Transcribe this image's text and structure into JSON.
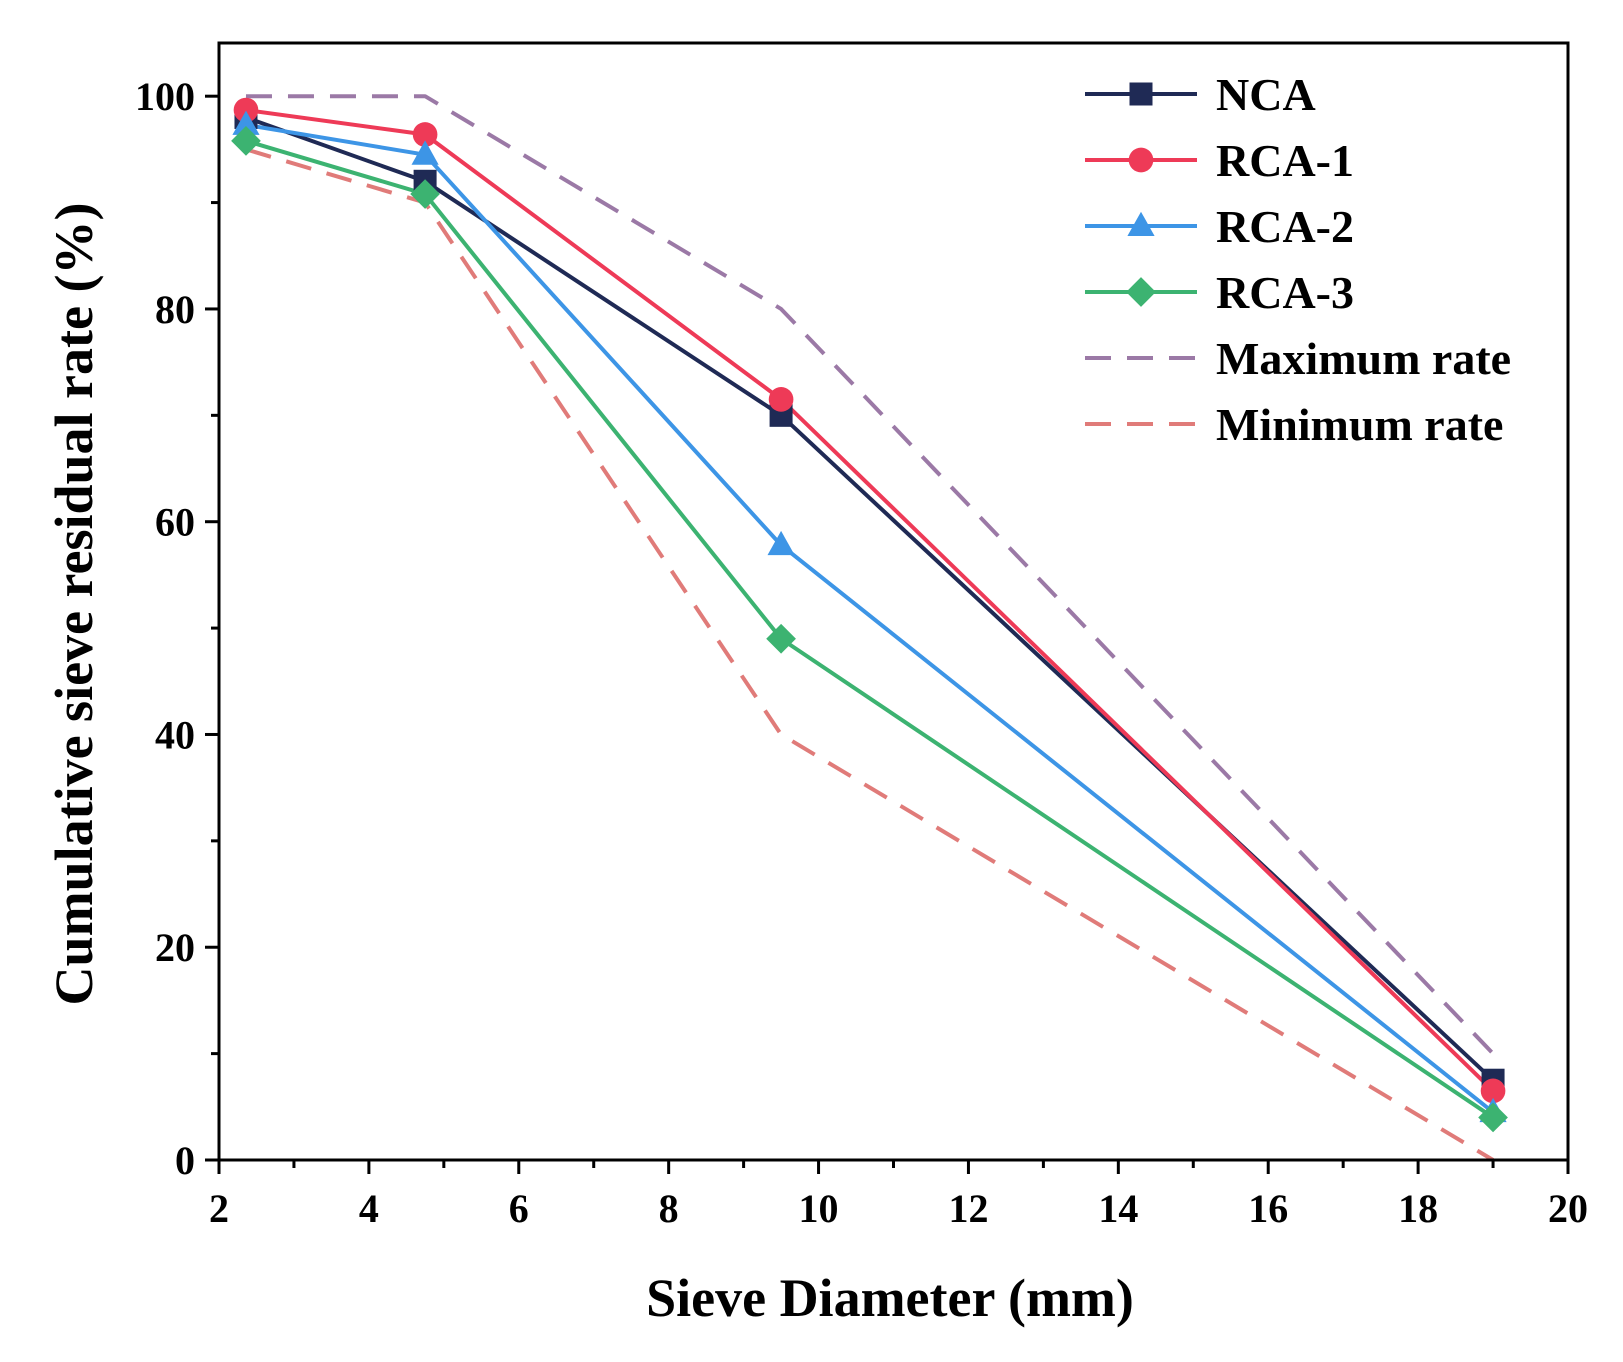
{
  "chart_data": {
    "type": "line",
    "title": "",
    "xlabel": "Sieve Diameter (mm)",
    "ylabel": "Cumulative sieve residual rate (%)",
    "xlim": [
      2,
      20
    ],
    "ylim": [
      0,
      105
    ],
    "xticks": [
      2,
      4,
      6,
      8,
      10,
      12,
      14,
      16,
      18,
      20
    ],
    "yticks": [
      0,
      20,
      40,
      60,
      80,
      100
    ],
    "grid": false,
    "legend_position": "top-right",
    "series": [
      {
        "name": "NCA",
        "style": "solid",
        "marker": "square",
        "color": "#1f2a55",
        "x": [
          2.36,
          4.75,
          9.5,
          19
        ],
        "y": [
          98,
          92,
          70,
          7.5
        ]
      },
      {
        "name": "RCA-1",
        "style": "solid",
        "marker": "circle",
        "color": "#ee3a57",
        "x": [
          2.36,
          4.75,
          9.5,
          19
        ],
        "y": [
          98.7,
          96.4,
          71.5,
          6.5
        ]
      },
      {
        "name": "RCA-2",
        "style": "solid",
        "marker": "triangle",
        "color": "#3d95e6",
        "x": [
          2.36,
          4.75,
          9.5,
          19
        ],
        "y": [
          97.3,
          94.5,
          57.8,
          4.5
        ]
      },
      {
        "name": "RCA-3",
        "style": "solid",
        "marker": "diamond",
        "color": "#3cb371",
        "x": [
          2.36,
          4.75,
          9.5,
          19
        ],
        "y": [
          95.8,
          90.8,
          49,
          4
        ]
      },
      {
        "name": "Maximum rate",
        "style": "dashed",
        "marker": "none",
        "color": "#9b79a6",
        "x": [
          2.36,
          4.75,
          9.5,
          19
        ],
        "y": [
          100,
          100,
          80,
          10
        ]
      },
      {
        "name": "Minimum rate",
        "style": "dashed",
        "marker": "none",
        "color": "#e07b79",
        "x": [
          2.36,
          4.75,
          9.5,
          19
        ],
        "y": [
          95,
          90,
          40,
          0
        ]
      }
    ]
  }
}
